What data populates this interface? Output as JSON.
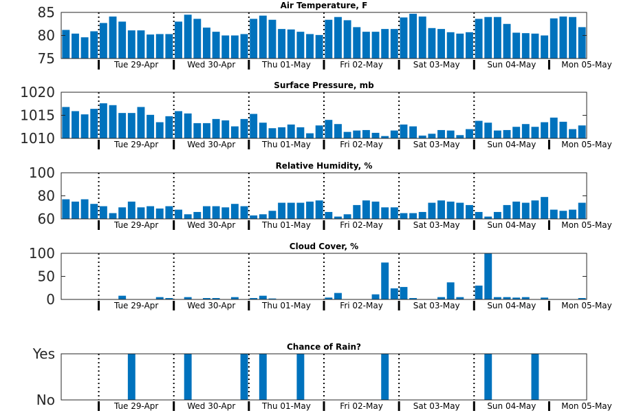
{
  "chart_data": [
    {
      "type": "bar",
      "title": "Air Temperature, F",
      "ylim": [
        75,
        85
      ],
      "yticks": [
        75,
        80,
        85
      ],
      "ytick_labels": [
        "75",
        "80",
        "85"
      ],
      "day_labels": [
        "Tue 29-Apr",
        "Wed 30-Apr",
        "Thu 01-May",
        "Fri 02-May",
        "Sat 03-May",
        "Sun 04-May",
        "Mon 05-May"
      ],
      "bar_color": "#0072bd",
      "values": [
        81.2,
        80.4,
        79.6,
        80.9,
        82.7,
        84.1,
        83.0,
        81.1,
        81.1,
        80.2,
        80.3,
        80.3,
        83.0,
        84.5,
        83.6,
        81.7,
        80.8,
        80.0,
        80.0,
        80.3,
        83.6,
        84.3,
        83.4,
        81.4,
        81.3,
        80.8,
        80.3,
        80.1,
        83.4,
        84.0,
        83.3,
        81.8,
        80.8,
        80.8,
        81.4,
        81.4,
        83.9,
        84.7,
        84.1,
        81.6,
        81.4,
        80.7,
        80.4,
        80.7,
        83.6,
        84.0,
        84.0,
        82.5,
        80.6,
        80.5,
        80.4,
        80.0,
        83.7,
        84.1,
        84.0,
        81.8
      ]
    },
    {
      "type": "bar",
      "title": "Surface Pressure, mb",
      "ylim": [
        1010,
        1020
      ],
      "yticks": [
        1010,
        1015,
        1020
      ],
      "ytick_labels": [
        "1010",
        "1015",
        "1020"
      ],
      "day_labels": [
        "Tue 29-Apr",
        "Wed 30-Apr",
        "Thu 01-May",
        "Fri 02-May",
        "Sat 03-May",
        "Sun 04-May",
        "Mon 05-May"
      ],
      "bar_color": "#0072bd",
      "values": [
        1016.8,
        1015.9,
        1015.2,
        1016.4,
        1017.6,
        1017.2,
        1015.5,
        1015.5,
        1016.8,
        1015.1,
        1013.5,
        1014.8,
        1015.9,
        1015.4,
        1013.3,
        1013.3,
        1014.2,
        1013.9,
        1012.6,
        1014.2,
        1015.3,
        1013.4,
        1012.2,
        1012.4,
        1013.0,
        1012.4,
        1011.1,
        1012.8,
        1014.0,
        1013.1,
        1011.4,
        1011.7,
        1011.8,
        1011.2,
        1010.5,
        1011.7,
        1013.0,
        1012.6,
        1010.6,
        1011.0,
        1011.8,
        1011.7,
        1010.7,
        1012.0,
        1013.8,
        1013.4,
        1011.7,
        1011.8,
        1012.5,
        1013.1,
        1012.5,
        1013.5,
        1014.5,
        1013.6,
        1012.0,
        1012.8
      ]
    },
    {
      "type": "bar",
      "title": "Relative Humidity, %",
      "ylim": [
        60,
        100
      ],
      "yticks": [
        60,
        80,
        100
      ],
      "ytick_labels": [
        "60",
        "80",
        "100"
      ],
      "day_labels": [
        "Tue 29-Apr",
        "Wed 30-Apr",
        "Thu 01-May",
        "Fri 02-May",
        "Sat 03-May",
        "Sun 04-May",
        "Mon 05-May"
      ],
      "bar_color": "#0072bd",
      "values": [
        77,
        75,
        77,
        73,
        71,
        65,
        70,
        75,
        70,
        71,
        69,
        71,
        68,
        64,
        66,
        71,
        71,
        70,
        73,
        71,
        63,
        64,
        67,
        74,
        74,
        74,
        75,
        76,
        66,
        62,
        64,
        72,
        76,
        75,
        70,
        70,
        65,
        65,
        66,
        74,
        76,
        75,
        74,
        72,
        66,
        62,
        66,
        72,
        75,
        74,
        76,
        79,
        68,
        67,
        68,
        74
      ]
    },
    {
      "type": "bar",
      "title": "Cloud Cover, %",
      "ylim": [
        0,
        100
      ],
      "yticks": [
        0,
        50,
        100
      ],
      "ytick_labels": [
        "0",
        "50",
        "100"
      ],
      "day_labels": [
        "Tue 29-Apr",
        "Wed 30-Apr",
        "Thu 01-May",
        "Fri 02-May",
        "Sat 03-May",
        "Sun 04-May",
        "Mon 05-May"
      ],
      "bar_color": "#0072bd",
      "values": [
        0,
        0,
        0,
        0,
        0,
        0,
        8,
        0,
        0,
        0,
        5,
        3,
        0,
        5,
        0,
        3,
        3,
        0,
        5,
        0,
        3,
        8,
        2,
        0,
        0,
        0,
        0,
        0,
        4,
        14,
        0,
        0,
        0,
        11,
        80,
        24,
        27,
        3,
        0,
        0,
        5,
        37,
        5,
        0,
        30,
        100,
        5,
        5,
        4,
        5,
        0,
        4,
        0,
        0,
        0,
        3
      ]
    },
    {
      "type": "bar",
      "title": "Chance of Rain?",
      "ylim": [
        0,
        1
      ],
      "yticks": [
        0,
        1
      ],
      "ytick_labels": [
        "No",
        "Yes"
      ],
      "day_labels": [
        "Tue 29-Apr",
        "Wed 30-Apr",
        "Thu 01-May",
        "Fri 02-May",
        "Sat 03-May",
        "Sun 04-May",
        "Mon 05-May"
      ],
      "bar_color": "#0072bd",
      "values": [
        0,
        0,
        0,
        0,
        0,
        0,
        0,
        1,
        0,
        0,
        0,
        0,
        0,
        1,
        0,
        0,
        0,
        0,
        0,
        1,
        0,
        1,
        0,
        0,
        0,
        1,
        0,
        0,
        0,
        0,
        0,
        0,
        0,
        0,
        1,
        0,
        0,
        0,
        0,
        0,
        0,
        0,
        0,
        0,
        0,
        1,
        0,
        0,
        0,
        0,
        1,
        0,
        0,
        0,
        0,
        0
      ]
    }
  ]
}
